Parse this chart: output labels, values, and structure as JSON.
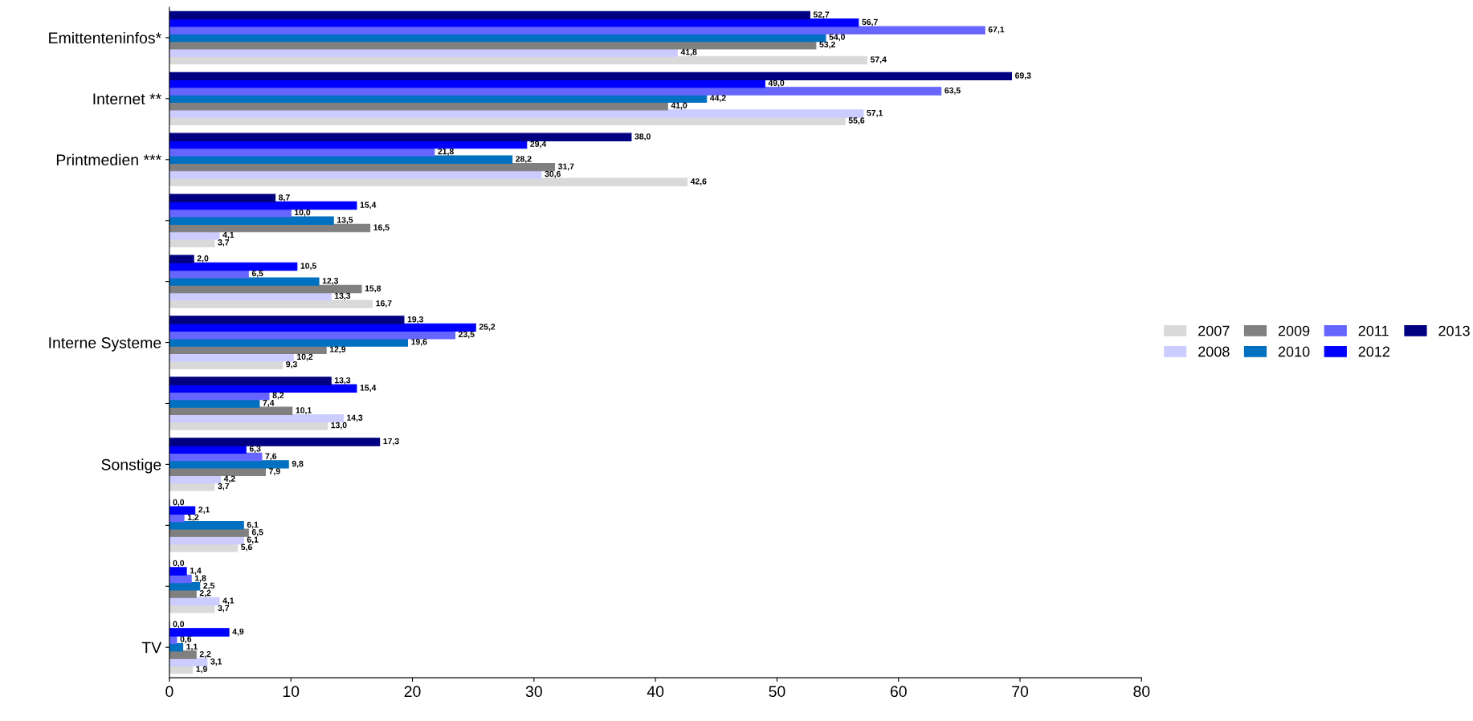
{
  "chart_data": {
    "type": "bar",
    "orientation": "horizontal",
    "categories": [
      "Emittenteninfos*",
      "Internet **",
      "Printmedien ***",
      null,
      null,
      "Interne Systeme",
      null,
      "Sonstige",
      null,
      null,
      "TV"
    ],
    "xlim": [
      0,
      80
    ],
    "xticks": [
      0,
      10,
      20,
      30,
      40,
      50,
      60,
      70,
      80
    ],
    "grid": false,
    "legend": "right",
    "series": [
      {
        "name": "2007",
        "color": "#d9d9d9",
        "values": [
          57.4,
          55.6,
          42.6,
          3.7,
          16.7,
          9.3,
          13.0,
          3.7,
          5.6,
          3.7,
          1.9
        ],
        "value_labels": [
          "57,4",
          "55,6",
          "42,6",
          "3,7",
          "16,7",
          "9,3",
          "13,0",
          "3,7",
          "5,6",
          "3,7",
          "1,9"
        ]
      },
      {
        "name": "2008",
        "color": "#ccccff",
        "values": [
          41.8,
          57.1,
          30.6,
          4.1,
          13.3,
          10.2,
          14.3,
          4.2,
          6.1,
          4.1,
          3.1
        ],
        "value_labels": [
          "41,8",
          "57,1",
          "30,6",
          "4,1",
          "13,3",
          "10,2",
          "14,3",
          "4,2",
          "6,1",
          "4,1",
          "3,1"
        ]
      },
      {
        "name": "2009",
        "color": "#808080",
        "values": [
          53.2,
          41.0,
          31.7,
          16.5,
          15.8,
          12.9,
          10.1,
          7.9,
          6.5,
          2.2,
          2.2
        ],
        "value_labels": [
          "53,2",
          "41,0",
          "31,7",
          "16,5",
          "15,8",
          "12,9",
          "10,1",
          "7,9",
          "6,5",
          "2,2",
          "2,2"
        ]
      },
      {
        "name": "2010",
        "color": "#0070c0",
        "values": [
          54.0,
          44.2,
          28.2,
          13.5,
          12.3,
          19.6,
          7.4,
          9.8,
          6.1,
          2.5,
          1.1
        ],
        "value_labels": [
          "54,0",
          "44,2",
          "28,2",
          "13,5",
          "12,3",
          "19,6",
          "7,4",
          "9,8",
          "6,1",
          "2,5",
          "1,1"
        ]
      },
      {
        "name": "2011",
        "color": "#6666ff",
        "values": [
          67.1,
          63.5,
          21.8,
          10.0,
          6.5,
          23.5,
          8.2,
          7.6,
          1.2,
          1.8,
          0.6
        ],
        "value_labels": [
          "67,1",
          "63,5",
          "21,8",
          "10,0",
          "6,5",
          "23,5",
          "8,2",
          "7,6",
          "1,2",
          "1,8",
          "0,6"
        ]
      },
      {
        "name": "2012",
        "color": "#0000ff",
        "values": [
          56.7,
          49.0,
          29.4,
          15.4,
          10.5,
          25.2,
          15.4,
          6.3,
          2.1,
          1.4,
          4.9
        ],
        "value_labels": [
          "56,7",
          "49,0",
          "29,4",
          "15,4",
          "10,5",
          "25,2",
          "15,4",
          "6,3",
          "2,1",
          "1,4",
          "4,9"
        ]
      },
      {
        "name": "2013",
        "color": "#000080",
        "values": [
          52.7,
          69.3,
          38.0,
          8.7,
          2.0,
          19.3,
          13.3,
          17.3,
          0.0,
          0.0,
          0.0
        ],
        "value_labels": [
          "52,7",
          "69,3",
          "38,0",
          "8,7",
          "2,0",
          "19,3",
          "13,3",
          "17,3",
          "0,0",
          "0,0",
          "0,0"
        ]
      }
    ]
  }
}
